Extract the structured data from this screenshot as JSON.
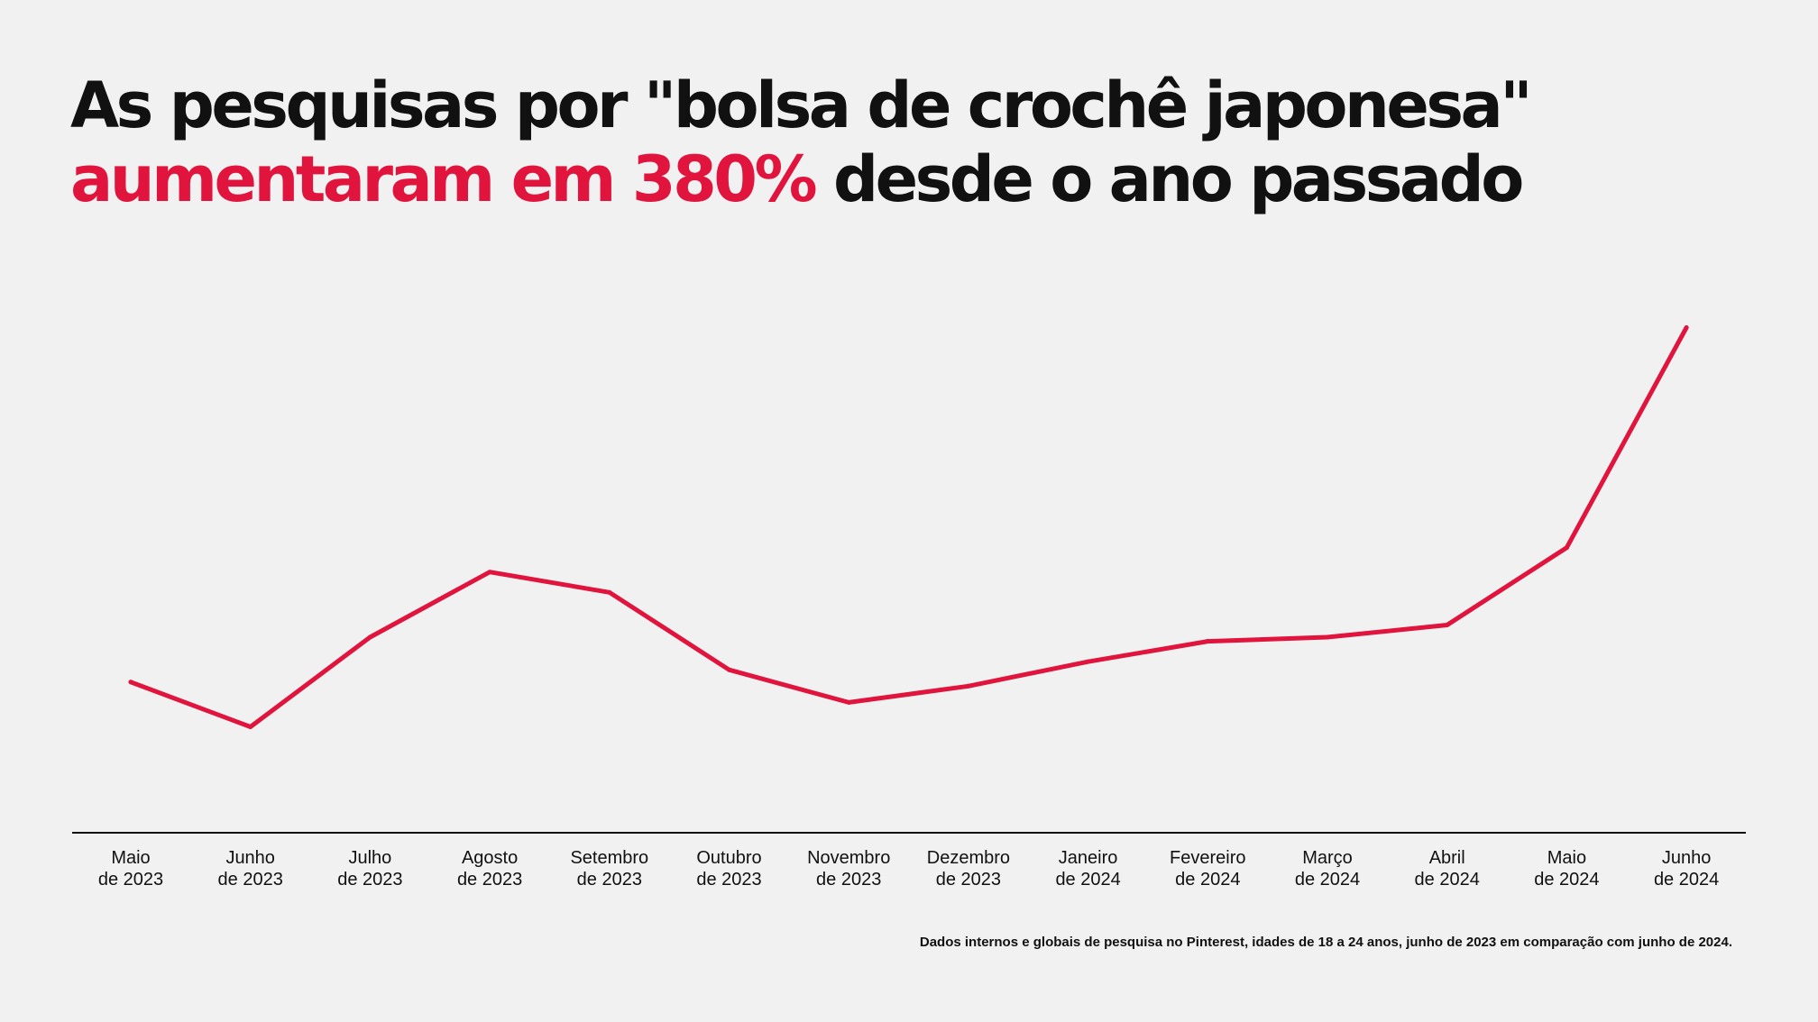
{
  "headline": {
    "line1": "As pesquisas por \"bolsa de crochê japonesa\"",
    "line2_highlight": "aumentaram em 380%",
    "line2_rest": " desde o ano passado"
  },
  "colors": {
    "background": "#f1f1f1",
    "text": "#111111",
    "accent": "#e0143c"
  },
  "chart_data": {
    "type": "line",
    "x": [
      [
        "Maio",
        "de 2023"
      ],
      [
        "Junho",
        "de 2023"
      ],
      [
        "Julho",
        "de 2023"
      ],
      [
        "Agosto",
        "de 2023"
      ],
      [
        "Setembro",
        "de 2023"
      ],
      [
        "Outubro",
        "de 2023"
      ],
      [
        "Novembro",
        "de 2023"
      ],
      [
        "Dezembro",
        "de 2023"
      ],
      [
        "Janeiro",
        "de 2024"
      ],
      [
        "Fevereiro",
        "de 2024"
      ],
      [
        "Março",
        "de 2024"
      ],
      [
        "Abril",
        "de 2024"
      ],
      [
        "Maio",
        "de 2024"
      ],
      [
        "Junho",
        "de 2024"
      ]
    ],
    "values": [
      37,
      26,
      48,
      64,
      59,
      40,
      32,
      36,
      42,
      47,
      48,
      51,
      70,
      124
    ],
    "ylim": [
      0,
      125
    ],
    "grid": false,
    "legend": "none",
    "yaxis_visible": false,
    "series_color": "#e0143c"
  },
  "footnote": "Dados internos e globais de pesquisa no Pinterest, idades de 18 a 24 anos, junho de 2023 em comparação com junho de 2024."
}
